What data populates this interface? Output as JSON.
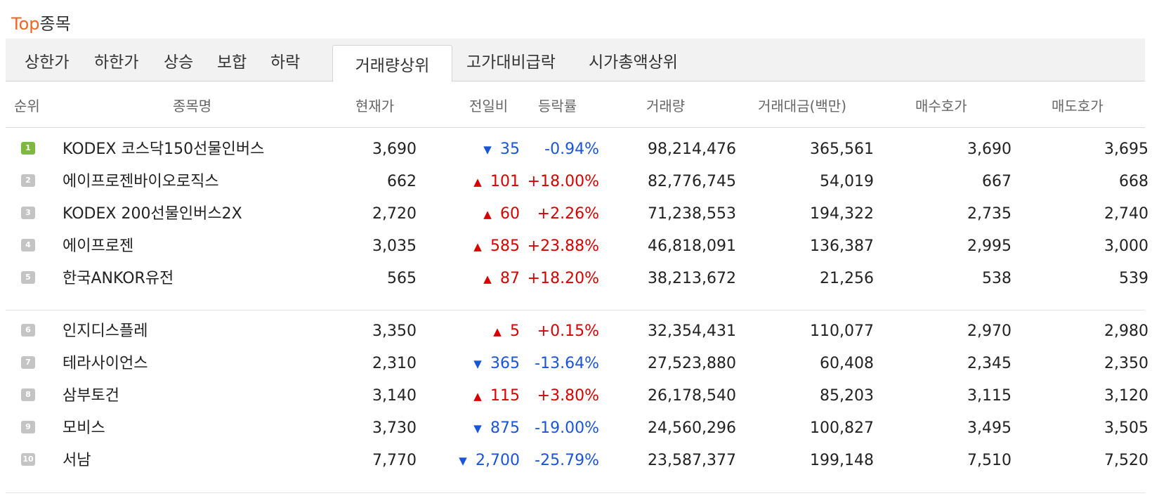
{
  "title": {
    "accent": "Top",
    "rest": "종목"
  },
  "tabs": [
    {
      "label": "상한가"
    },
    {
      "label": "하한가"
    },
    {
      "label": "상승"
    },
    {
      "label": "보합"
    },
    {
      "label": "하락"
    },
    {
      "label": "거래량상위",
      "active": true
    },
    {
      "label": "고가대비급락"
    },
    {
      "label": "시가총액상위"
    }
  ],
  "columns": [
    "순위",
    "종목명",
    "현재가",
    "전일비",
    "등락률",
    "거래량",
    "거래대금(백만)",
    "매수호가",
    "매도호가"
  ],
  "rows": [
    {
      "rank": "1",
      "name": "KODEX 코스닥150선물인버스",
      "price": "3,690",
      "dir": "down",
      "change": "35",
      "rate": "-0.94%",
      "volume": "98,214,476",
      "amount": "365,561",
      "bid": "3,690",
      "ask": "3,695"
    },
    {
      "rank": "2",
      "name": "에이프로젠바이오로직스",
      "price": "662",
      "dir": "up",
      "change": "101",
      "rate": "+18.00%",
      "volume": "82,776,745",
      "amount": "54,019",
      "bid": "667",
      "ask": "668"
    },
    {
      "rank": "3",
      "name": "KODEX 200선물인버스2X",
      "price": "2,720",
      "dir": "up",
      "change": "60",
      "rate": "+2.26%",
      "volume": "71,238,553",
      "amount": "194,322",
      "bid": "2,735",
      "ask": "2,740"
    },
    {
      "rank": "4",
      "name": "에이프로젠",
      "price": "3,035",
      "dir": "up",
      "change": "585",
      "rate": "+23.88%",
      "volume": "46,818,091",
      "amount": "136,387",
      "bid": "2,995",
      "ask": "3,000"
    },
    {
      "rank": "5",
      "name": "한국ANKOR유전",
      "price": "565",
      "dir": "up",
      "change": "87",
      "rate": "+18.20%",
      "volume": "38,213,672",
      "amount": "21,256",
      "bid": "538",
      "ask": "539"
    },
    {
      "rank": "6",
      "name": "인지디스플레",
      "price": "3,350",
      "dir": "up",
      "change": "5",
      "rate": "+0.15%",
      "volume": "32,354,431",
      "amount": "110,077",
      "bid": "2,970",
      "ask": "2,980"
    },
    {
      "rank": "7",
      "name": "테라사이언스",
      "price": "2,310",
      "dir": "down",
      "change": "365",
      "rate": "-13.64%",
      "volume": "27,523,880",
      "amount": "60,408",
      "bid": "2,345",
      "ask": "2,350"
    },
    {
      "rank": "8",
      "name": "삼부토건",
      "price": "3,140",
      "dir": "up",
      "change": "115",
      "rate": "+3.80%",
      "volume": "26,178,540",
      "amount": "85,203",
      "bid": "3,115",
      "ask": "3,120"
    },
    {
      "rank": "9",
      "name": "모비스",
      "price": "3,730",
      "dir": "down",
      "change": "875",
      "rate": "-19.00%",
      "volume": "24,560,296",
      "amount": "100,827",
      "bid": "3,495",
      "ask": "3,505"
    },
    {
      "rank": "10",
      "name": "서남",
      "price": "7,770",
      "dir": "down",
      "change": "2,700",
      "rate": "-25.79%",
      "volume": "23,587,377",
      "amount": "199,148",
      "bid": "7,510",
      "ask": "7,520"
    }
  ],
  "symbols": {
    "up_arrow": "▲",
    "down_arrow": "▼"
  },
  "colors": {
    "accent": "#f26522",
    "up": "#d60000",
    "down": "#1a55d6",
    "rank_first": "#7cba3b",
    "rank_other": "#c4c4c4"
  }
}
